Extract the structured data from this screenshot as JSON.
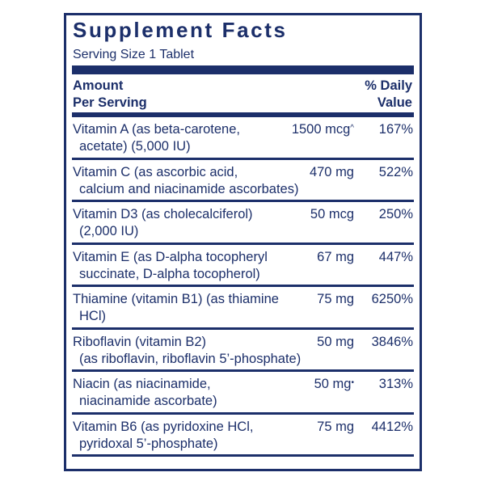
{
  "title": "Supplement Facts",
  "serving_size": "Serving Size 1 Tablet",
  "header": {
    "amount_line1": "Amount",
    "amount_line2": "Per Serving",
    "dv_line1": "% Daily",
    "dv_line2": "Value"
  },
  "colors": {
    "primary": "#1c2f6a",
    "background": "#ffffff"
  },
  "rows": [
    {
      "line1": "Vitamin A (as beta-carotene,",
      "line2": "acetate) (5,000 IU)",
      "amount": "1500 mcg",
      "mark": "^",
      "dv": "167%"
    },
    {
      "line1": "Vitamin C (as ascorbic acid,",
      "line2": "calcium and niacinamide ascorbates)",
      "amount": "470 mg",
      "mark": "",
      "dv": "522%"
    },
    {
      "line1": "Vitamin D3 (as cholecalciferol)",
      "line2": "(2,000 IU)",
      "amount": "50 mcg",
      "mark": "",
      "dv": "250%"
    },
    {
      "line1": "Vitamin E (as D-alpha tocopheryl",
      "line2": "succinate, D-alpha tocopherol)",
      "amount": "67 mg",
      "mark": "",
      "dv": "447%"
    },
    {
      "line1": "Thiamine (vitamin B1) (as thiamine",
      "line2": "HCl)",
      "amount": "75 mg",
      "mark": "",
      "dv": "6250%"
    },
    {
      "line1": "Riboflavin (vitamin B2)",
      "line2": "(as riboflavin, riboflavin 5’-phosphate)",
      "amount": "50 mg",
      "mark": "",
      "dv": "3846%"
    },
    {
      "line1": "Niacin (as niacinamide,",
      "line2": "niacinamide ascorbate)",
      "amount": "50 mg",
      "mark": "•",
      "dv": "313%"
    },
    {
      "line1": "Vitamin B6 (as pyridoxine HCl,",
      "line2": "pyridoxal 5’-phosphate)",
      "amount": "75 mg",
      "mark": "",
      "dv": "4412%"
    }
  ]
}
